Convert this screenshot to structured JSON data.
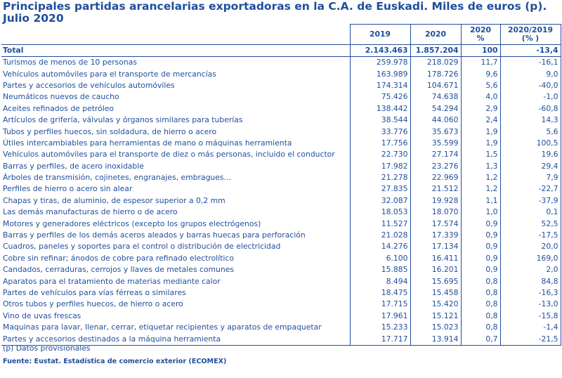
{
  "title": "Principales partidas arancelarias exportadoras en la C.A. de Euskadi. Miles de euros (p). Julio 2020",
  "headers": {
    "y2019": "2019",
    "y2020": "2020",
    "pct_line1": "2020",
    "pct_line2": "%",
    "var_line1": "2020/2019",
    "var_line2": "(% )"
  },
  "total": {
    "name": "Total",
    "v2019": "2.143.463",
    "v2020": "1.857.204",
    "pct": "100",
    "var": "-13,4"
  },
  "rows": [
    {
      "name": "Turismos de menos de  10 personas",
      "v2019": "259.978",
      "v2020": "218.029",
      "pct": "11,7",
      "var": "-16,1"
    },
    {
      "name": "Vehículos automóviles para el transporte de mercancías",
      "v2019": "163.989",
      "v2020": "178.726",
      "pct": "9,6",
      "var": "9,0"
    },
    {
      "name": "Partes y accesorios de vehículos automóviles",
      "v2019": "174.314",
      "v2020": "104.671",
      "pct": "5,6",
      "var": "-40,0"
    },
    {
      "name": "Neumáticos nuevos de caucho",
      "v2019": "75.426",
      "v2020": "74.638",
      "pct": "4,0",
      "var": "-1,0"
    },
    {
      "name": "Aceites refinados de petróleo",
      "v2019": "138.442",
      "v2020": "54.294",
      "pct": "2,9",
      "var": "-60,8"
    },
    {
      "name": "Artículos de grifería, válvulas y órganos similares para tuberías",
      "v2019": "38.544",
      "v2020": "44.060",
      "pct": "2,4",
      "var": "14,3"
    },
    {
      "name": "Tubos y perfiles huecos, sin soldadura, de hierro o acero",
      "v2019": "33.776",
      "v2020": "35.673",
      "pct": "1,9",
      "var": "5,6"
    },
    {
      "name": "Útiles intercambiables para herramientas de mano o máquinas herramienta",
      "v2019": "17.756",
      "v2020": "35.599",
      "pct": "1,9",
      "var": "100,5"
    },
    {
      "name": "Vehículos automóviles para el transporte de diez o más personas, incluido el conductor",
      "v2019": "22.730",
      "v2020": "27.174",
      "pct": "1,5",
      "var": "19,6"
    },
    {
      "name": "Barras y perfiles, de acero inoxidable",
      "v2019": "17.982",
      "v2020": "23.276",
      "pct": "1,3",
      "var": "29,4"
    },
    {
      "name": "Árboles de transmisión, cojinetes, engranajes, embragues…",
      "v2019": "21.278",
      "v2020": "22.969",
      "pct": "1,2",
      "var": "7,9"
    },
    {
      "name": "Perfiles de hierro o acero sin alear",
      "v2019": "27.835",
      "v2020": "21.512",
      "pct": "1,2",
      "var": "-22,7"
    },
    {
      "name": "Chapas y tiras, de aluminio, de espesor superior a 0,2 mm",
      "v2019": "32.087",
      "v2020": "19.928",
      "pct": "1,1",
      "var": "-37,9"
    },
    {
      "name": "Las demás manufacturas de hierro o de acero",
      "v2019": "18.053",
      "v2020": "18.070",
      "pct": "1,0",
      "var": "0,1"
    },
    {
      "name": "Motores y generadores eléctricos (excepto los grupos electrógenos)",
      "v2019": "11.527",
      "v2020": "17.574",
      "pct": "0,9",
      "var": "52,5"
    },
    {
      "name": "Barras y perfiles de los demás aceros aleados y barras huecas para perforación",
      "v2019": "21.028",
      "v2020": "17.339",
      "pct": "0,9",
      "var": "-17,5"
    },
    {
      "name": "Cuadros, paneles y soportes para el control o distribución de electricidad",
      "v2019": "14.276",
      "v2020": "17.134",
      "pct": "0,9",
      "var": "20,0"
    },
    {
      "name": "Cobre sin refinar; ánodos de cobre para refinado electrolítico",
      "v2019": "6.100",
      "v2020": "16.411",
      "pct": "0,9",
      "var": "169,0"
    },
    {
      "name": "Candados, cerraduras, cerrojos y llaves de metales comunes",
      "v2019": "15.885",
      "v2020": "16.201",
      "pct": "0,9",
      "var": "2,0"
    },
    {
      "name": "Aparatos para el tratamiento de materias mediante calor",
      "v2019": "8.494",
      "v2020": "15.695",
      "pct": "0,8",
      "var": "84,8"
    },
    {
      "name": "Partes de vehículos para vías férreas o similares",
      "v2019": "18.475",
      "v2020": "15.458",
      "pct": "0,8",
      "var": "-16,3"
    },
    {
      "name": "Otros tubos y perfiles huecos, de hierro o acero",
      "v2019": "17.715",
      "v2020": "15.420",
      "pct": "0,8",
      "var": "-13,0"
    },
    {
      "name": "Vino de uvas frescas",
      "v2019": "17.961",
      "v2020": "15.121",
      "pct": "0,8",
      "var": "-15,8"
    },
    {
      "name": "Maquinas para lavar, llenar, cerrar, etiquetar recipientes  y aparatos de empaquetar",
      "v2019": "15.233",
      "v2020": "15.023",
      "pct": "0,8",
      "var": "-1,4"
    },
    {
      "name": "Partes y accesorios destinados a la máquina herramienta",
      "v2019": "17.717",
      "v2020": "13.914",
      "pct": "0,7",
      "var": "-21,5"
    }
  ],
  "note": "(p) Datos provisionales",
  "source": "Fuente: Eustat. Estadística de comercio exterior (ECOMEX)"
}
